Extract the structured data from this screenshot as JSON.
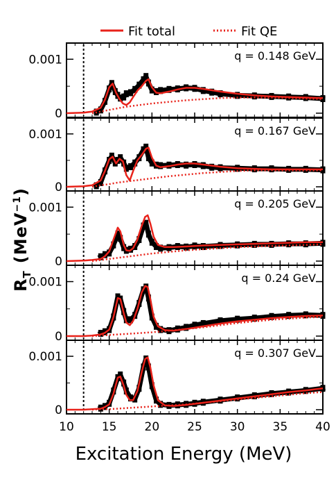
{
  "chart_data": {
    "type": "line",
    "xlabel": "Excitation Energy (MeV)",
    "ylabel": "R_T (MeV^-1)",
    "ylabel_main": "R",
    "ylabel_sub": "T",
    "ylabel_unit": "(MeV",
    "ylabel_unit_sup": "−1",
    "ylabel_unit_close": ")",
    "xlim": [
      10,
      40
    ],
    "ylim": [
      0,
      0.0013
    ],
    "x_ticks": [
      10,
      15,
      20,
      25,
      30,
      35,
      40
    ],
    "x_tick_labels": [
      "10",
      "15",
      "20",
      "25",
      "30",
      "35",
      "40"
    ],
    "y_tick_labels": [
      "0",
      "0.001"
    ],
    "dashed_line_x": 12,
    "legend": {
      "placement": "top",
      "entries": [
        {
          "label": "Fit total",
          "style": "solid",
          "color": "#e8221a"
        },
        {
          "label": "Fit QE",
          "style": "dotted",
          "color": "#e8221a"
        }
      ]
    },
    "panels": [
      {
        "label": "q = 0.148 GeV",
        "data_x": [
          13.5,
          14,
          14.5,
          15,
          15.3,
          15.7,
          16,
          16.3,
          16.7,
          17,
          17.5,
          18,
          18.5,
          19,
          19.3,
          19.6,
          20,
          20.5,
          21,
          22,
          23,
          24,
          25,
          26,
          27,
          28,
          30,
          32,
          34,
          36,
          38,
          40
        ],
        "data_y": [
          2e-05,
          6e-05,
          0.00022,
          0.00045,
          0.00055,
          0.0004,
          0.00033,
          0.00028,
          0.0003,
          0.00036,
          0.00038,
          0.00044,
          0.00052,
          0.00062,
          0.00068,
          0.00056,
          0.00043,
          0.0004,
          0.00042,
          0.00044,
          0.00045,
          0.00047,
          0.00046,
          0.00042,
          0.00039,
          0.00036,
          0.00033,
          0.00032,
          0.00031,
          0.0003,
          0.00029,
          0.00027
        ],
        "fit_total_x": [
          10,
          12,
          13,
          14,
          14.5,
          15,
          15.4,
          15.8,
          16.2,
          16.6,
          17,
          17.4,
          17.8,
          18.3,
          18.8,
          19.3,
          19.6,
          20,
          20.5,
          21,
          22,
          23,
          24,
          25,
          26,
          28,
          30,
          32,
          34,
          36,
          38,
          40
        ],
        "fit_total_y": [
          0.0,
          1e-05,
          3e-05,
          0.0001,
          0.00025,
          0.00048,
          0.00055,
          0.00038,
          0.00026,
          0.00018,
          0.00015,
          0.0002,
          0.0003,
          0.00042,
          0.0005,
          0.0006,
          0.00063,
          0.00048,
          0.00038,
          0.00037,
          0.0004,
          0.00044,
          0.00047,
          0.00047,
          0.00045,
          0.0004,
          0.00036,
          0.00033,
          0.00031,
          0.0003,
          0.00029,
          0.00028
        ],
        "fit_qe_x": [
          13,
          14,
          15,
          16,
          17,
          18,
          20,
          22,
          24,
          26,
          28,
          30,
          32,
          34,
          36,
          38,
          40
        ],
        "fit_qe_y": [
          0.0,
          3e-05,
          6e-05,
          9e-05,
          0.00012,
          0.00014,
          0.00018,
          0.00021,
          0.00024,
          0.00026,
          0.00028,
          0.00029,
          0.00029,
          0.00029,
          0.00028,
          0.00027,
          0.00026
        ]
      },
      {
        "label": "q = 0.167 GeV",
        "data_x": [
          13.5,
          14,
          14.5,
          15,
          15.3,
          15.7,
          16,
          16.3,
          16.7,
          17,
          17.5,
          18,
          18.5,
          19,
          19.3,
          19.6,
          20,
          20.5,
          21,
          22,
          23,
          24,
          25,
          26,
          27,
          28,
          30,
          32,
          34,
          36,
          38,
          40
        ],
        "data_y": [
          2e-05,
          8e-05,
          0.0003,
          0.0005,
          0.00058,
          0.00045,
          0.0005,
          0.00055,
          0.00045,
          0.00035,
          0.00038,
          0.00045,
          0.00055,
          0.0007,
          0.00075,
          0.00055,
          0.00045,
          0.00041,
          0.0004,
          0.00041,
          0.00042,
          0.00041,
          0.00042,
          0.0004,
          0.00037,
          0.00036,
          0.00035,
          0.00034,
          0.00034,
          0.00033,
          0.00033,
          0.00032
        ],
        "fit_total_x": [
          10,
          12,
          13,
          14,
          14.5,
          15,
          15.4,
          15.8,
          16.2,
          16.6,
          17,
          17.4,
          17.8,
          18.3,
          18.8,
          19.3,
          19.6,
          20,
          20.5,
          21,
          22,
          23,
          24,
          25,
          26,
          28,
          30,
          32,
          34,
          36,
          38,
          40
        ],
        "fit_total_y": [
          0.0,
          1e-05,
          3e-05,
          0.00012,
          0.0003,
          0.00052,
          0.00057,
          0.00044,
          0.00053,
          0.00048,
          0.00022,
          0.00012,
          0.0003,
          0.0005,
          0.0006,
          0.00072,
          0.00074,
          0.00055,
          0.0004,
          0.00037,
          0.00039,
          0.00042,
          0.00044,
          0.00044,
          0.00042,
          0.00038,
          0.00035,
          0.00034,
          0.00033,
          0.00033,
          0.00033,
          0.00033
        ],
        "fit_qe_x": [
          13,
          14,
          15,
          16,
          17,
          18,
          20,
          22,
          24,
          26,
          28,
          30,
          32,
          34,
          36,
          38,
          40
        ],
        "fit_qe_y": [
          0.0,
          3e-05,
          5e-05,
          8e-05,
          0.0001,
          0.00012,
          0.00016,
          0.0002,
          0.00023,
          0.00026,
          0.00028,
          0.0003,
          0.00031,
          0.00031,
          0.00031,
          0.00031,
          0.00031
        ]
      },
      {
        "label": "q = 0.205 GeV",
        "data_x": [
          14,
          14.5,
          15,
          15.5,
          16,
          16.3,
          16.7,
          17,
          17.5,
          18,
          18.5,
          19,
          19.3,
          19.6,
          20,
          20.5,
          21,
          22,
          23,
          24,
          25,
          26,
          28,
          30,
          32,
          34,
          36,
          38,
          40
        ],
        "data_y": [
          8e-05,
          0.00012,
          0.00015,
          0.0003,
          0.0005,
          0.00042,
          0.00025,
          0.0002,
          0.00022,
          0.00027,
          0.0004,
          0.00065,
          0.0007,
          0.0005,
          0.00035,
          0.00027,
          0.00024,
          0.00025,
          0.00027,
          0.00026,
          0.00028,
          0.00027,
          0.00029,
          0.0003,
          0.00031,
          0.00031,
          0.00032,
          0.00032,
          0.00033
        ],
        "fit_total_x": [
          10,
          12,
          13,
          14,
          14.5,
          15,
          15.5,
          16,
          16.3,
          16.7,
          17,
          17.4,
          17.8,
          18.3,
          18.8,
          19.2,
          19.5,
          19.8,
          20.2,
          20.7,
          21.5,
          22.5,
          24,
          26,
          28,
          30,
          32,
          34,
          36,
          38,
          40
        ],
        "fit_total_y": [
          0.0,
          1e-05,
          2e-05,
          4e-05,
          9e-05,
          0.00018,
          0.0004,
          0.00062,
          0.00055,
          0.0003,
          0.0002,
          0.00019,
          0.00024,
          0.0004,
          0.00065,
          0.00082,
          0.00085,
          0.0007,
          0.00045,
          0.0003,
          0.00026,
          0.00026,
          0.00027,
          0.00029,
          0.0003,
          0.00031,
          0.00032,
          0.00033,
          0.00034,
          0.00035,
          0.00035
        ],
        "fit_qe_x": [
          13,
          14,
          15,
          16,
          17,
          18,
          20,
          22,
          24,
          26,
          28,
          30,
          32,
          34,
          36,
          38,
          40
        ],
        "fit_qe_y": [
          0.0,
          2e-05,
          4e-05,
          6e-05,
          8e-05,
          0.0001,
          0.00014,
          0.00017,
          0.0002,
          0.00022,
          0.00024,
          0.00026,
          0.00027,
          0.00028,
          0.00029,
          0.0003,
          0.00031
        ]
      },
      {
        "label": "q = 0.24 GeV",
        "data_x": [
          14,
          14.5,
          15,
          15.5,
          16,
          16.3,
          16.7,
          17,
          17.5,
          18,
          18.5,
          19,
          19.3,
          19.6,
          20,
          20.5,
          21,
          22,
          23,
          24,
          25,
          26,
          28,
          30,
          32,
          34,
          36,
          38,
          40
        ],
        "data_y": [
          5e-05,
          8e-05,
          0.00012,
          0.00035,
          0.00072,
          0.00068,
          0.00045,
          0.0003,
          0.0003,
          0.00038,
          0.0006,
          0.00085,
          0.0009,
          0.0007,
          0.00035,
          0.00018,
          0.00012,
          0.0001,
          0.00013,
          0.00016,
          0.0002,
          0.00023,
          0.00028,
          0.00031,
          0.00033,
          0.00036,
          0.00038,
          0.00039,
          0.00038
        ],
        "fit_total_x": [
          10,
          12,
          13,
          14,
          14.5,
          15,
          15.5,
          16,
          16.3,
          16.7,
          17,
          17.4,
          17.8,
          18.3,
          18.8,
          19.2,
          19.5,
          19.8,
          20.2,
          20.7,
          21.5,
          22.5,
          24,
          26,
          28,
          30,
          32,
          34,
          36,
          38,
          40
        ],
        "fit_total_y": [
          0.0,
          0.0,
          1e-05,
          3e-05,
          6e-05,
          0.00012,
          0.00035,
          0.0007,
          0.00068,
          0.00042,
          0.00025,
          0.0002,
          0.00028,
          0.0005,
          0.0008,
          0.00092,
          0.0009,
          0.00068,
          0.00035,
          0.00018,
          0.00011,
          0.0001,
          0.00013,
          0.00018,
          0.00023,
          0.00027,
          0.0003,
          0.00033,
          0.00035,
          0.00037,
          0.00038
        ],
        "fit_qe_x": [
          13,
          14,
          15,
          16,
          17,
          18,
          20,
          22,
          24,
          26,
          28,
          30,
          32,
          34,
          36,
          38,
          40
        ],
        "fit_qe_y": [
          0.0,
          1e-05,
          2e-05,
          3e-05,
          4e-05,
          5e-05,
          7e-05,
          0.0001,
          0.00013,
          0.00016,
          0.0002,
          0.00024,
          0.00027,
          0.0003,
          0.00032,
          0.00034,
          0.00035
        ]
      },
      {
        "label": "q = 0.307 GeV",
        "data_x": [
          14,
          14.5,
          15,
          15.5,
          16,
          16.3,
          16.7,
          17,
          17.5,
          18,
          18.5,
          19,
          19.3,
          19.6,
          20,
          20.5,
          21,
          22,
          23,
          24,
          25,
          26,
          28,
          30,
          32,
          34,
          36,
          38,
          40
        ],
        "data_y": [
          3e-05,
          6e-05,
          0.00012,
          0.00035,
          0.0006,
          0.00065,
          0.0005,
          0.00035,
          0.00022,
          0.0002,
          0.0004,
          0.0008,
          0.00095,
          0.0008,
          0.00045,
          0.00018,
          0.0001,
          8e-05,
          9e-05,
          0.0001,
          0.00012,
          0.00014,
          0.00018,
          0.00022,
          0.00026,
          0.0003,
          0.00033,
          0.00036,
          0.0004
        ],
        "fit_total_x": [
          10,
          12,
          13,
          14,
          14.5,
          15,
          15.5,
          16,
          16.3,
          16.7,
          17,
          17.4,
          17.8,
          18.3,
          18.8,
          19.2,
          19.5,
          19.8,
          20.2,
          20.7,
          21.5,
          22.5,
          24,
          26,
          28,
          30,
          32,
          34,
          36,
          38,
          40
        ],
        "fit_total_y": [
          0.0,
          0.0,
          1e-05,
          2e-05,
          5e-05,
          0.0001,
          0.0003,
          0.0006,
          0.00062,
          0.00045,
          0.00028,
          0.00018,
          0.00018,
          0.00035,
          0.0007,
          0.00095,
          0.00098,
          0.0008,
          0.00045,
          0.00018,
          8e-05,
          7e-05,
          9e-05,
          0.00013,
          0.00017,
          0.00021,
          0.00025,
          0.00029,
          0.00033,
          0.00036,
          0.0004
        ],
        "fit_qe_x": [
          13,
          14,
          15,
          16,
          17,
          18,
          20,
          22,
          24,
          26,
          28,
          30,
          32,
          34,
          36,
          38,
          40
        ],
        "fit_qe_y": [
          0.0,
          1e-05,
          1e-05,
          2e-05,
          3e-05,
          4e-05,
          6e-05,
          8e-05,
          0.0001,
          0.00013,
          0.00016,
          0.00019,
          0.00022,
          0.00025,
          0.00028,
          0.00031,
          0.00033
        ]
      }
    ]
  }
}
